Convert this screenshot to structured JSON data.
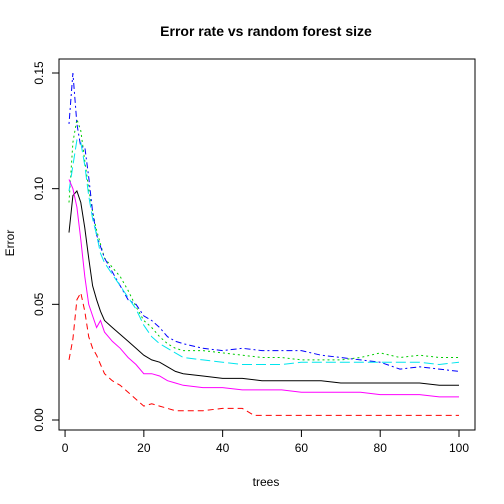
{
  "chart_data": {
    "type": "line",
    "title": "Error rate vs random forest size",
    "xlabel": "trees",
    "ylabel": "Error",
    "xlim": [
      1,
      100
    ],
    "ylim": [
      0,
      0.15
    ],
    "xticks": [
      0,
      20,
      40,
      60,
      80,
      100
    ],
    "xtick_labels": [
      "0",
      "20",
      "40",
      "60",
      "80",
      "100"
    ],
    "yticks": [
      0.0,
      0.05,
      0.1,
      0.15
    ],
    "ytick_labels": [
      "0.00",
      "0.05",
      "0.10",
      "0.15"
    ],
    "grid": false,
    "legend": "none",
    "series": [
      {
        "color": "#000000",
        "dash": "solid",
        "points": [
          [
            1,
            0.081
          ],
          [
            2,
            0.097
          ],
          [
            3,
            0.099
          ],
          [
            4,
            0.094
          ],
          [
            5,
            0.083
          ],
          [
            6,
            0.07
          ],
          [
            7,
            0.058
          ],
          [
            8,
            0.052
          ],
          [
            9,
            0.047
          ],
          [
            10,
            0.043
          ],
          [
            12,
            0.04
          ],
          [
            14,
            0.037
          ],
          [
            16,
            0.034
          ],
          [
            18,
            0.031
          ],
          [
            20,
            0.028
          ],
          [
            22,
            0.026
          ],
          [
            24,
            0.025
          ],
          [
            26,
            0.023
          ],
          [
            28,
            0.021
          ],
          [
            30,
            0.02
          ],
          [
            35,
            0.019
          ],
          [
            40,
            0.018
          ],
          [
            45,
            0.018
          ],
          [
            50,
            0.017
          ],
          [
            55,
            0.017
          ],
          [
            60,
            0.017
          ],
          [
            65,
            0.017
          ],
          [
            70,
            0.016
          ],
          [
            75,
            0.016
          ],
          [
            80,
            0.016
          ],
          [
            85,
            0.016
          ],
          [
            90,
            0.016
          ],
          [
            95,
            0.015
          ],
          [
            100,
            0.015
          ]
        ]
      },
      {
        "color": "#ff0000",
        "dash": "dashed",
        "points": [
          [
            1,
            0.026
          ],
          [
            2,
            0.035
          ],
          [
            3,
            0.052
          ],
          [
            4,
            0.055
          ],
          [
            5,
            0.047
          ],
          [
            6,
            0.036
          ],
          [
            7,
            0.031
          ],
          [
            8,
            0.028
          ],
          [
            9,
            0.024
          ],
          [
            10,
            0.02
          ],
          [
            12,
            0.017
          ],
          [
            14,
            0.015
          ],
          [
            16,
            0.012
          ],
          [
            18,
            0.009
          ],
          [
            20,
            0.006
          ],
          [
            22,
            0.007
          ],
          [
            24,
            0.006
          ],
          [
            26,
            0.005
          ],
          [
            28,
            0.004
          ],
          [
            30,
            0.004
          ],
          [
            35,
            0.004
          ],
          [
            40,
            0.005
          ],
          [
            45,
            0.005
          ],
          [
            48,
            0.002
          ],
          [
            50,
            0.002
          ],
          [
            55,
            0.002
          ],
          [
            60,
            0.002
          ],
          [
            65,
            0.002
          ],
          [
            70,
            0.002
          ],
          [
            75,
            0.002
          ],
          [
            80,
            0.002
          ],
          [
            85,
            0.002
          ],
          [
            90,
            0.002
          ],
          [
            95,
            0.002
          ],
          [
            100,
            0.002
          ]
        ]
      },
      {
        "color": "#00cd00",
        "dash": "dotted",
        "points": [
          [
            1,
            0.094
          ],
          [
            2,
            0.12
          ],
          [
            3,
            0.13
          ],
          [
            4,
            0.125
          ],
          [
            5,
            0.112
          ],
          [
            6,
            0.1
          ],
          [
            7,
            0.09
          ],
          [
            8,
            0.082
          ],
          [
            9,
            0.076
          ],
          [
            10,
            0.07
          ],
          [
            12,
            0.066
          ],
          [
            14,
            0.062
          ],
          [
            16,
            0.056
          ],
          [
            18,
            0.049
          ],
          [
            20,
            0.043
          ],
          [
            22,
            0.04
          ],
          [
            24,
            0.036
          ],
          [
            26,
            0.033
          ],
          [
            28,
            0.031
          ],
          [
            30,
            0.03
          ],
          [
            35,
            0.03
          ],
          [
            40,
            0.029
          ],
          [
            45,
            0.028
          ],
          [
            50,
            0.027
          ],
          [
            55,
            0.027
          ],
          [
            60,
            0.026
          ],
          [
            65,
            0.026
          ],
          [
            70,
            0.026
          ],
          [
            75,
            0.027
          ],
          [
            80,
            0.029
          ],
          [
            85,
            0.027
          ],
          [
            90,
            0.028
          ],
          [
            95,
            0.027
          ],
          [
            100,
            0.027
          ]
        ]
      },
      {
        "color": "#0000ff",
        "dash": "dotdash",
        "points": [
          [
            1,
            0.128
          ],
          [
            2,
            0.15
          ],
          [
            3,
            0.128
          ],
          [
            4,
            0.118
          ],
          [
            5,
            0.118
          ],
          [
            6,
            0.105
          ],
          [
            7,
            0.09
          ],
          [
            8,
            0.08
          ],
          [
            9,
            0.075
          ],
          [
            10,
            0.07
          ],
          [
            12,
            0.064
          ],
          [
            14,
            0.058
          ],
          [
            16,
            0.052
          ],
          [
            18,
            0.05
          ],
          [
            20,
            0.045
          ],
          [
            22,
            0.043
          ],
          [
            24,
            0.04
          ],
          [
            26,
            0.036
          ],
          [
            28,
            0.034
          ],
          [
            30,
            0.033
          ],
          [
            35,
            0.031
          ],
          [
            40,
            0.03
          ],
          [
            45,
            0.031
          ],
          [
            50,
            0.03
          ],
          [
            55,
            0.03
          ],
          [
            60,
            0.03
          ],
          [
            65,
            0.028
          ],
          [
            70,
            0.027
          ],
          [
            75,
            0.026
          ],
          [
            80,
            0.025
          ],
          [
            85,
            0.022
          ],
          [
            90,
            0.023
          ],
          [
            95,
            0.022
          ],
          [
            100,
            0.021
          ]
        ]
      },
      {
        "color": "#00e5ee",
        "dash": "longdash",
        "points": [
          [
            1,
            0.099
          ],
          [
            2,
            0.11
          ],
          [
            3,
            0.121
          ],
          [
            4,
            0.12
          ],
          [
            5,
            0.11
          ],
          [
            6,
            0.097
          ],
          [
            7,
            0.087
          ],
          [
            8,
            0.08
          ],
          [
            9,
            0.072
          ],
          [
            10,
            0.068
          ],
          [
            12,
            0.063
          ],
          [
            14,
            0.058
          ],
          [
            16,
            0.053
          ],
          [
            18,
            0.048
          ],
          [
            20,
            0.041
          ],
          [
            22,
            0.036
          ],
          [
            24,
            0.033
          ],
          [
            26,
            0.031
          ],
          [
            28,
            0.029
          ],
          [
            30,
            0.027
          ],
          [
            35,
            0.026
          ],
          [
            40,
            0.025
          ],
          [
            45,
            0.024
          ],
          [
            50,
            0.024
          ],
          [
            55,
            0.024
          ],
          [
            60,
            0.025
          ],
          [
            65,
            0.025
          ],
          [
            70,
            0.025
          ],
          [
            75,
            0.025
          ],
          [
            80,
            0.025
          ],
          [
            85,
            0.025
          ],
          [
            90,
            0.025
          ],
          [
            95,
            0.024
          ],
          [
            100,
            0.025
          ]
        ]
      },
      {
        "color": "#ff00ff",
        "dash": "solid",
        "points": [
          [
            1,
            0.104
          ],
          [
            2,
            0.1
          ],
          [
            3,
            0.092
          ],
          [
            4,
            0.078
          ],
          [
            5,
            0.062
          ],
          [
            6,
            0.05
          ],
          [
            7,
            0.045
          ],
          [
            8,
            0.04
          ],
          [
            9,
            0.043
          ],
          [
            10,
            0.038
          ],
          [
            12,
            0.034
          ],
          [
            14,
            0.031
          ],
          [
            16,
            0.027
          ],
          [
            18,
            0.024
          ],
          [
            20,
            0.02
          ],
          [
            22,
            0.02
          ],
          [
            24,
            0.019
          ],
          [
            26,
            0.017
          ],
          [
            28,
            0.016
          ],
          [
            30,
            0.015
          ],
          [
            35,
            0.014
          ],
          [
            40,
            0.014
          ],
          [
            45,
            0.013
          ],
          [
            50,
            0.013
          ],
          [
            55,
            0.013
          ],
          [
            60,
            0.012
          ],
          [
            65,
            0.012
          ],
          [
            70,
            0.012
          ],
          [
            75,
            0.012
          ],
          [
            80,
            0.011
          ],
          [
            85,
            0.011
          ],
          [
            90,
            0.011
          ],
          [
            95,
            0.01
          ],
          [
            100,
            0.01
          ]
        ]
      }
    ]
  }
}
